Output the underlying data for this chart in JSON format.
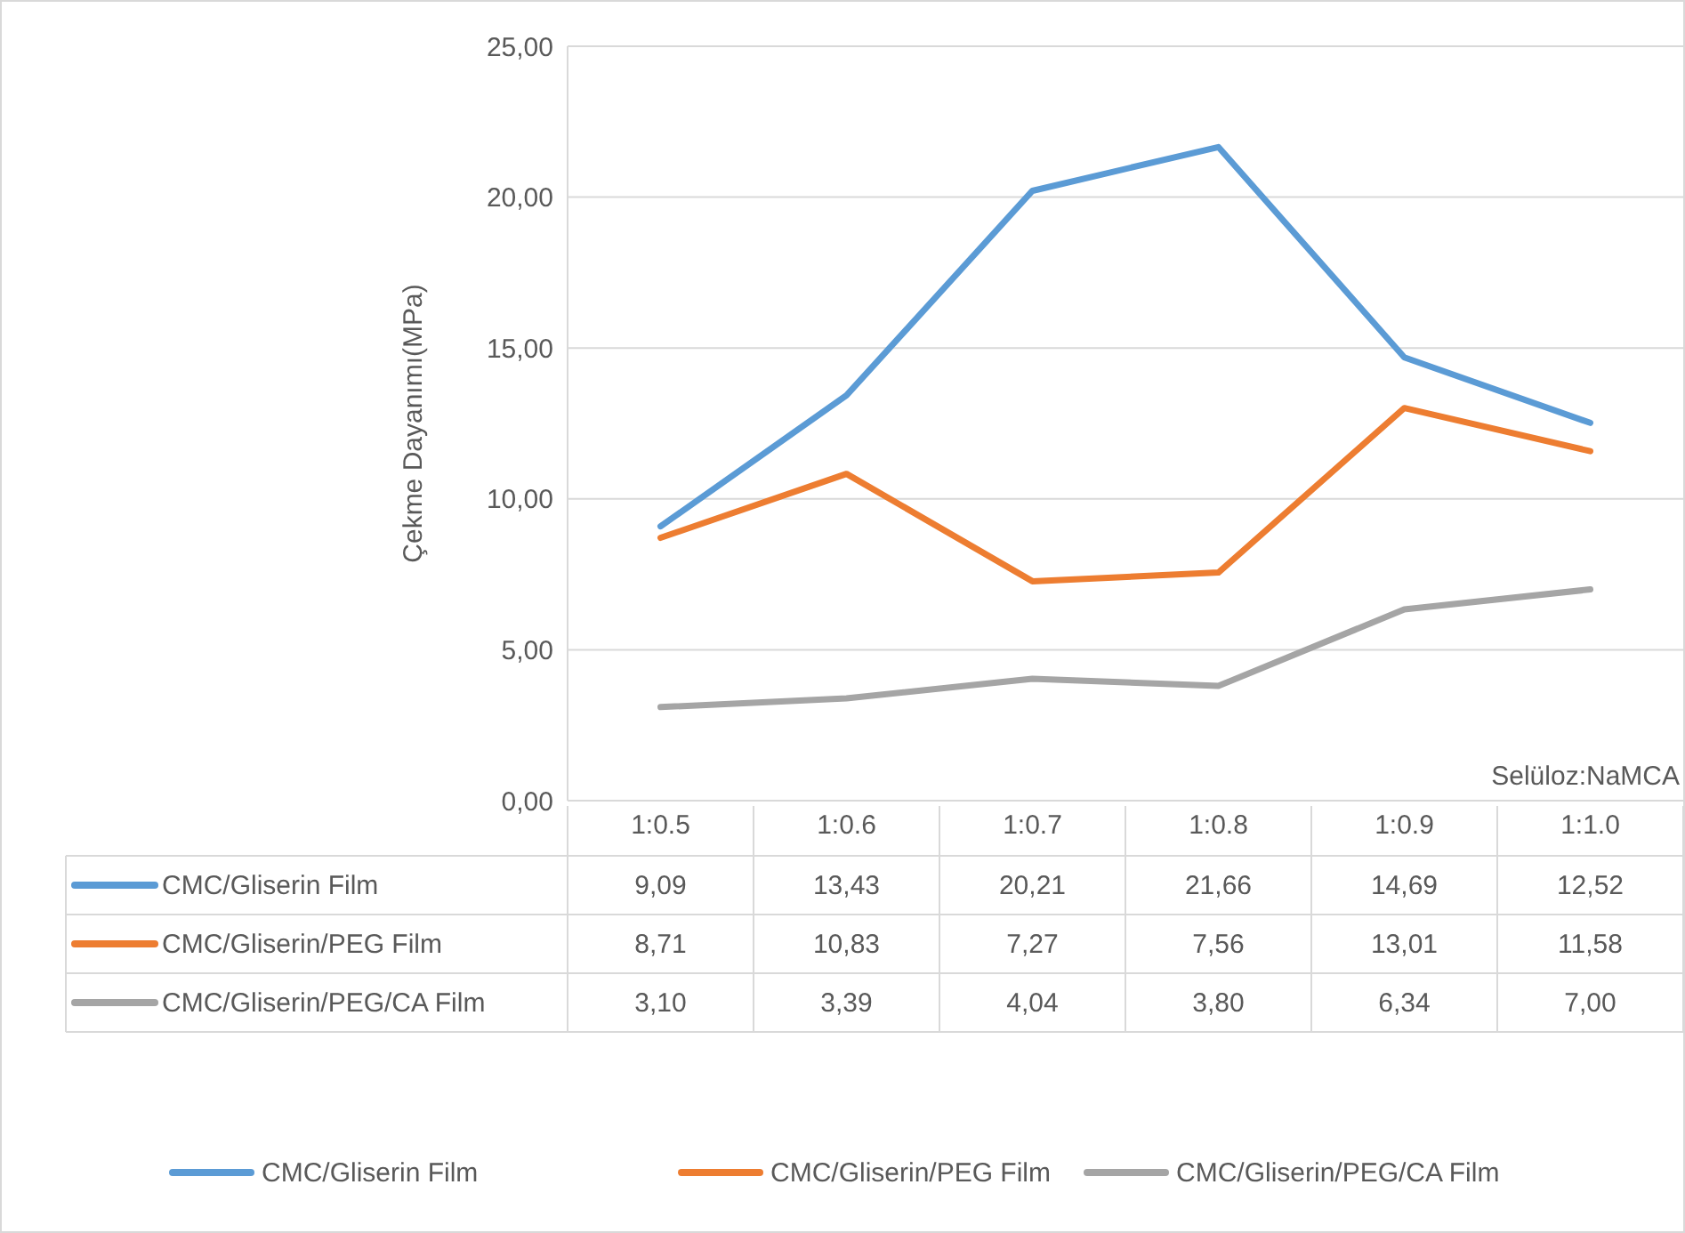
{
  "chart_data": {
    "type": "line",
    "xlabel": "Selüloz:NaMCA",
    "ylabel": "Çekme Dayanımı(MPa)",
    "categories": [
      "1:0.5",
      "1:0.6",
      "1:0.7",
      "1:0.8",
      "1:0.9",
      "1:1.0"
    ],
    "series": [
      {
        "name": "CMC/Gliserin Film",
        "color": "#5b9bd5",
        "values": [
          9.09,
          13.43,
          20.21,
          21.66,
          14.69,
          12.52
        ],
        "value_labels": [
          "9,09",
          "13,43",
          "20,21",
          "21,66",
          "14,69",
          "12,52"
        ]
      },
      {
        "name": "CMC/Gliserin/PEG Film",
        "color": "#ed7d31",
        "values": [
          8.71,
          10.83,
          7.27,
          7.56,
          13.01,
          11.58
        ],
        "value_labels": [
          "8,71",
          "10,83",
          "7,27",
          "7,56",
          "13,01",
          "11,58"
        ]
      },
      {
        "name": "CMC/Gliserin/PEG/CA Film",
        "color": "#a5a5a5",
        "values": [
          3.1,
          3.39,
          4.04,
          3.8,
          6.34,
          7.0
        ],
        "value_labels": [
          "3,10",
          "3,39",
          "4,04",
          "3,80",
          "6,34",
          "7,00"
        ]
      }
    ],
    "ylim": [
      0,
      25
    ],
    "yticks": [
      {
        "value": 0,
        "label": "0,00"
      },
      {
        "value": 5,
        "label": "5,00"
      },
      {
        "value": 10,
        "label": "10,00"
      },
      {
        "value": 15,
        "label": "15,00"
      },
      {
        "value": 20,
        "label": "20,00"
      },
      {
        "value": 25,
        "label": "25,00"
      }
    ],
    "grid": "y",
    "legend": "bottom",
    "marker": "none",
    "line_style": "solid"
  }
}
